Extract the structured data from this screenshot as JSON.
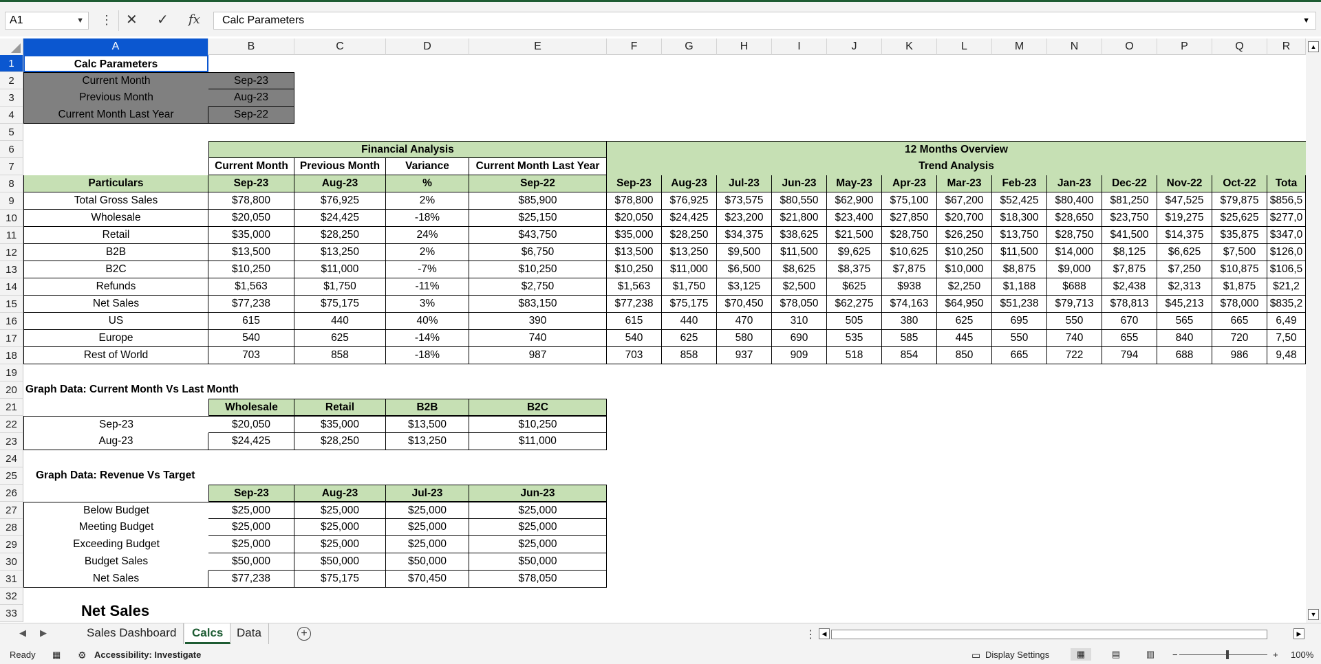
{
  "formula_bar": {
    "name_box": "A1",
    "cancel_icon": "✕",
    "enter_icon": "✓",
    "fx_label": "fx",
    "content": "Calc Parameters"
  },
  "columns": [
    "A",
    "B",
    "C",
    "D",
    "E",
    "F",
    "G",
    "H",
    "I",
    "J",
    "K",
    "L",
    "M",
    "N",
    "O",
    "P",
    "Q",
    "R"
  ],
  "rows": [
    "1",
    "2",
    "3",
    "4",
    "5",
    "6",
    "7",
    "8",
    "9",
    "10",
    "11",
    "12",
    "13",
    "14",
    "15",
    "16",
    "17",
    "18",
    "19",
    "20",
    "21",
    "22",
    "23",
    "24",
    "25",
    "26",
    "27",
    "28",
    "29",
    "30",
    "31",
    "32",
    "33"
  ],
  "calc_params": {
    "title": "Calc Parameters",
    "items": [
      {
        "label": "Current Month",
        "value": "Sep-23"
      },
      {
        "label": "Previous Month",
        "value": "Aug-23"
      },
      {
        "label": "Current Month Last Year",
        "value": "Sep-22"
      }
    ]
  },
  "financial": {
    "group_title": "Financial Analysis",
    "sub_headers": [
      "Current Month",
      "Previous Month",
      "Variance",
      "Current Month Last Year"
    ],
    "particulars_label": "Particulars",
    "period_headers": [
      "Sep-23",
      "Aug-23",
      "%",
      "Sep-22"
    ],
    "rows": [
      {
        "label": "Total Gross Sales",
        "values": [
          "$78,800",
          "$76,925",
          "2%",
          "$85,900"
        ]
      },
      {
        "label": "Wholesale",
        "values": [
          "$20,050",
          "$24,425",
          "-18%",
          "$25,150"
        ]
      },
      {
        "label": "Retail",
        "values": [
          "$35,000",
          "$28,250",
          "24%",
          "$43,750"
        ]
      },
      {
        "label": "B2B",
        "values": [
          "$13,500",
          "$13,250",
          "2%",
          "$6,750"
        ]
      },
      {
        "label": "B2C",
        "values": [
          "$10,250",
          "$11,000",
          "-7%",
          "$10,250"
        ]
      },
      {
        "label": "Refunds",
        "values": [
          "$1,563",
          "$1,750",
          "-11%",
          "$2,750"
        ]
      },
      {
        "label": "Net Sales",
        "values": [
          "$77,238",
          "$75,175",
          "3%",
          "$83,150"
        ]
      },
      {
        "label": "US",
        "values": [
          "615",
          "440",
          "40%",
          "390"
        ]
      },
      {
        "label": "Europe",
        "values": [
          "540",
          "625",
          "-14%",
          "740"
        ]
      },
      {
        "label": "Rest of World",
        "values": [
          "703",
          "858",
          "-18%",
          "987"
        ]
      }
    ]
  },
  "overview": {
    "group_title": "12 Months Overview",
    "sub_title": "Trend Analysis",
    "months": [
      "Sep-23",
      "Aug-23",
      "Jul-23",
      "Jun-23",
      "May-23",
      "Apr-23",
      "Mar-23",
      "Feb-23",
      "Jan-23",
      "Dec-22",
      "Nov-22",
      "Oct-22",
      "Tota"
    ],
    "rows": [
      [
        "$78,800",
        "$76,925",
        "$73,575",
        "$80,550",
        "$62,900",
        "$75,100",
        "$67,200",
        "$52,425",
        "$80,400",
        "$81,250",
        "$47,525",
        "$79,875",
        "$856,5"
      ],
      [
        "$20,050",
        "$24,425",
        "$23,200",
        "$21,800",
        "$23,400",
        "$27,850",
        "$20,700",
        "$18,300",
        "$28,650",
        "$23,750",
        "$19,275",
        "$25,625",
        "$277,0"
      ],
      [
        "$35,000",
        "$28,250",
        "$34,375",
        "$38,625",
        "$21,500",
        "$28,750",
        "$26,250",
        "$13,750",
        "$28,750",
        "$41,500",
        "$14,375",
        "$35,875",
        "$347,0"
      ],
      [
        "$13,500",
        "$13,250",
        "$9,500",
        "$11,500",
        "$9,625",
        "$10,625",
        "$10,250",
        "$11,500",
        "$14,000",
        "$8,125",
        "$6,625",
        "$7,500",
        "$126,0"
      ],
      [
        "$10,250",
        "$11,000",
        "$6,500",
        "$8,625",
        "$8,375",
        "$7,875",
        "$10,000",
        "$8,875",
        "$9,000",
        "$7,875",
        "$7,250",
        "$10,875",
        "$106,5"
      ],
      [
        "$1,563",
        "$1,750",
        "$3,125",
        "$2,500",
        "$625",
        "$938",
        "$2,250",
        "$1,188",
        "$688",
        "$2,438",
        "$2,313",
        "$1,875",
        "$21,2"
      ],
      [
        "$77,238",
        "$75,175",
        "$70,450",
        "$78,050",
        "$62,275",
        "$74,163",
        "$64,950",
        "$51,238",
        "$79,713",
        "$78,813",
        "$45,213",
        "$78,000",
        "$835,2"
      ],
      [
        "615",
        "440",
        "470",
        "310",
        "505",
        "380",
        "625",
        "695",
        "550",
        "670",
        "565",
        "665",
        "6,49"
      ],
      [
        "540",
        "625",
        "580",
        "690",
        "535",
        "585",
        "445",
        "550",
        "740",
        "655",
        "840",
        "720",
        "7,50"
      ],
      [
        "703",
        "858",
        "937",
        "909",
        "518",
        "854",
        "850",
        "665",
        "722",
        "794",
        "688",
        "986",
        "9,48"
      ]
    ]
  },
  "graph1": {
    "title": "Graph Data: Current Month Vs Last Month",
    "headers": [
      "Wholesale",
      "Retail",
      "B2B",
      "B2C"
    ],
    "rows": [
      {
        "label": "Sep-23",
        "values": [
          "$20,050",
          "$35,000",
          "$13,500",
          "$10,250"
        ]
      },
      {
        "label": "Aug-23",
        "values": [
          "$24,425",
          "$28,250",
          "$13,250",
          "$11,000"
        ]
      }
    ]
  },
  "graph2": {
    "title": "Graph Data: Revenue Vs Target",
    "headers": [
      "Sep-23",
      "Aug-23",
      "Jul-23",
      "Jun-23"
    ],
    "rows": [
      {
        "label": "Below Budget",
        "values": [
          "$25,000",
          "$25,000",
          "$25,000",
          "$25,000"
        ]
      },
      {
        "label": "Meeting Budget",
        "values": [
          "$25,000",
          "$25,000",
          "$25,000",
          "$25,000"
        ]
      },
      {
        "label": "Exceeding Budget",
        "values": [
          "$25,000",
          "$25,000",
          "$25,000",
          "$25,000"
        ]
      },
      {
        "label": "Budget Sales",
        "values": [
          "$50,000",
          "$50,000",
          "$50,000",
          "$50,000"
        ]
      },
      {
        "label": "Net Sales",
        "values": [
          "$77,238",
          "$75,175",
          "$70,450",
          "$78,050"
        ]
      }
    ]
  },
  "chart_peek_title": "Net Sales",
  "sheet_tabs": [
    "Sales Dashboard",
    "Calcs",
    "Data"
  ],
  "active_tab": "Calcs",
  "status": {
    "ready": "Ready",
    "accessibility": "Accessibility: Investigate",
    "display_settings": "Display Settings",
    "zoom": "100%",
    "zoom_minus": "−",
    "zoom_plus": "+"
  }
}
